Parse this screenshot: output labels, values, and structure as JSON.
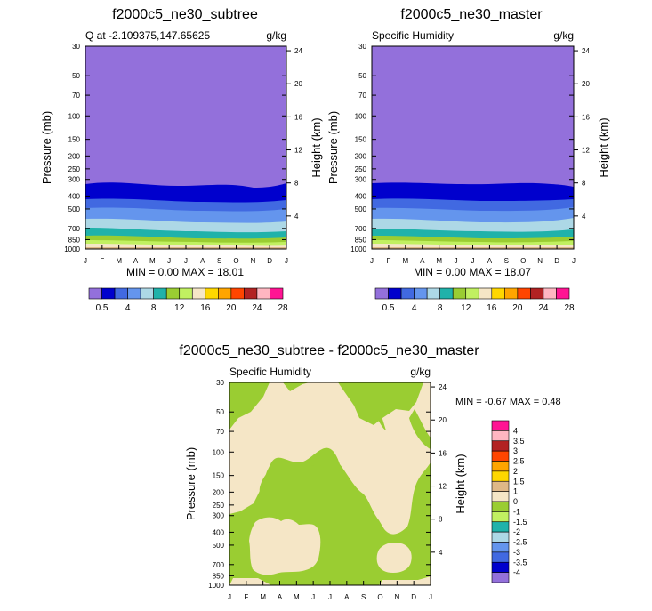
{
  "month_labels": [
    "J",
    "F",
    "M",
    "A",
    "M",
    "J",
    "J",
    "A",
    "S",
    "O",
    "N",
    "D",
    "J"
  ],
  "pressure_ticks": [
    "30",
    "50",
    "70",
    "100",
    "150",
    "200",
    "250",
    "300",
    "400",
    "500",
    "700",
    "850",
    "1000"
  ],
  "pressure_values": [
    30,
    50,
    70,
    100,
    150,
    200,
    250,
    300,
    400,
    500,
    700,
    850,
    1000
  ],
  "height_ticks": [
    "24",
    "20",
    "16",
    "12",
    "8",
    "4"
  ],
  "height_values": [
    24,
    20,
    16,
    12,
    8,
    4
  ],
  "pressure_label": "Pressure (mb)",
  "height_label": "Height (km)",
  "colors": {
    "purple": "#9370db",
    "navy": "#0000cd",
    "royal": "#4169e1",
    "cornflower": "#6495ed",
    "lightblue": "#add8e6",
    "teal": "#20b2aa",
    "yellowgreen": "#9acd32",
    "lightgreen": "#c1f061",
    "cream": "#f5e6c6",
    "tan": "#deb887",
    "gold": "#ffd700",
    "orange": "#ffa500",
    "orangered": "#ff4500",
    "firebrick": "#b22222",
    "pink": "#ffb6c1",
    "magenta": "#ff1493"
  },
  "chart_data": [
    {
      "type": "contour",
      "title": "f2000c5_ne30_subtree",
      "left_label": "Q at -2.109375,147.65625",
      "right_label": "g/kg",
      "stats": "MIN =  0.00 MAX = 18.01",
      "min": 0.0,
      "max": 18.01,
      "ylabel": "Pressure (mb)",
      "ylabel_right": "Height (km)",
      "yrange_mb": [
        30,
        1000
      ],
      "xrange_months": [
        "J",
        "J"
      ],
      "colorbar_labels": [
        "0.5",
        "4",
        "8",
        "12",
        "16",
        "20",
        "24",
        "28"
      ],
      "colorbar_colors": [
        "purple",
        "navy",
        "royal",
        "cornflower",
        "lightblue",
        "teal",
        "yellowgreen",
        "lightgreen",
        "cream",
        "gold",
        "orange",
        "orangered",
        "firebrick",
        "pink",
        "magenta"
      ]
    },
    {
      "type": "contour",
      "title": "f2000c5_ne30_master",
      "left_label": "Specific Humidity",
      "right_label": "g/kg",
      "stats": "MIN =  0.00 MAX = 18.07",
      "min": 0.0,
      "max": 18.07,
      "ylabel": "Pressure (mb)",
      "ylabel_right": "Height (km)",
      "yrange_mb": [
        30,
        1000
      ],
      "xrange_months": [
        "J",
        "J"
      ],
      "colorbar_labels": [
        "0.5",
        "4",
        "8",
        "12",
        "16",
        "20",
        "24",
        "28"
      ],
      "colorbar_colors": [
        "purple",
        "navy",
        "royal",
        "cornflower",
        "lightblue",
        "teal",
        "yellowgreen",
        "lightgreen",
        "cream",
        "gold",
        "orange",
        "orangered",
        "firebrick",
        "pink",
        "magenta"
      ]
    },
    {
      "type": "contour",
      "title": "f2000c5_ne30_subtree - f2000c5_ne30_master",
      "left_label": "Specific Humidity",
      "right_label": "g/kg",
      "stats": "MIN =  -0.67 MAX =   0.48",
      "min": -0.67,
      "max": 0.48,
      "ylabel": "Pressure (mb)",
      "ylabel_right": "Height (km)",
      "yrange_mb": [
        30,
        1000
      ],
      "xrange_months": [
        "J",
        "J"
      ],
      "colorbar_labels": [
        "4",
        "3.5",
        "3",
        "2.5",
        "2",
        "1.5",
        "1",
        "0",
        "-1",
        "-1.5",
        "-2",
        "-2.5",
        "-3",
        "-3.5",
        "-4"
      ],
      "colorbar_colors": [
        "magenta",
        "pink",
        "firebrick",
        "orangered",
        "orange",
        "gold",
        "tan",
        "cream",
        "yellowgreen",
        "lightgreen",
        "teal",
        "lightblue",
        "cornflower",
        "royal",
        "navy",
        "purple"
      ]
    }
  ]
}
